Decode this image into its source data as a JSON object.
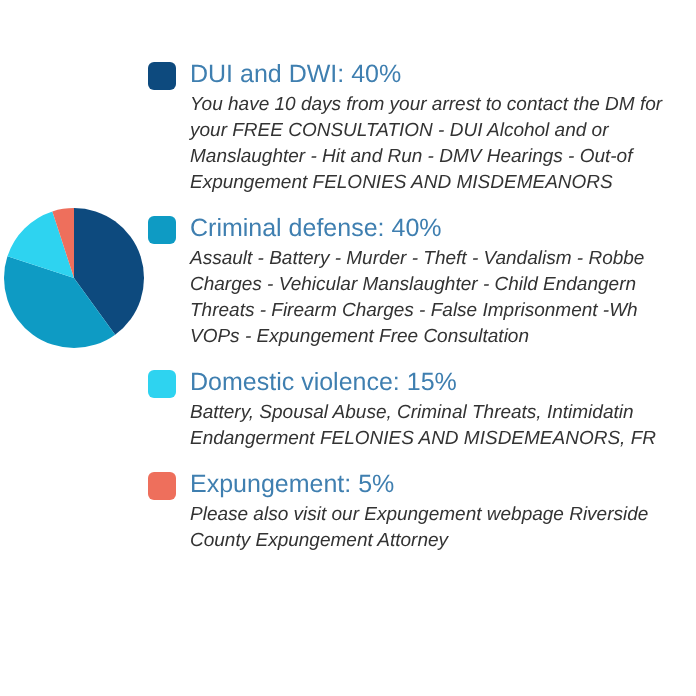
{
  "chart_data": {
    "type": "pie",
    "categories": [
      "DUI and DWI",
      "Criminal defense",
      "Domestic violence",
      "Expungement"
    ],
    "values": [
      40,
      40,
      15,
      5
    ],
    "value_labels": [
      "40%",
      "40%",
      "15%",
      "5%"
    ],
    "colors": [
      "#0d4a7e",
      "#0e9bc4",
      "#2ed3f0",
      "#ee6f5c"
    ],
    "legend": "right",
    "annotations": [
      "You have 10 days from your arrest to contact the DM for your FREE CONSULTATION - DUI Alcohol and or Manslaughter - Hit and Run - DMV Hearings - Out-of Expungement FELONIES AND MISDEMEANORS",
      "Assault - Battery - Murder - Theft - Vandalism - Robbe Charges - Vehicular Manslaughter - Child Endangern Threats - Firearm Charges - False Imprisonment -Wh VOPs - Expungement Free Consultation",
      "Battery, Spousal Abuse, Criminal Threats, Intimidatin Endangerment FELONIES AND MISDEMEANORS, FR",
      "Please also visit our Expungement webpage Riverside County Expungement Attorney"
    ]
  }
}
